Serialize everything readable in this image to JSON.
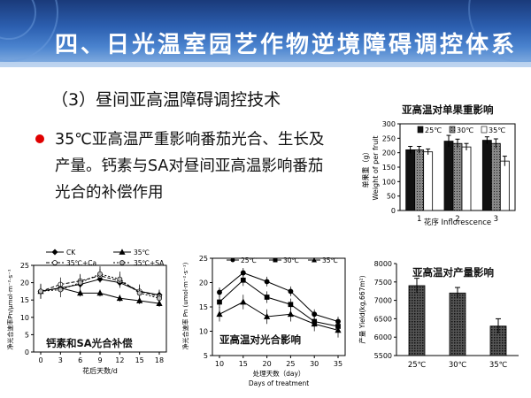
{
  "slide": {
    "banner_title": "四、日光温室园艺作物逆境障碍调控体系",
    "subtitle": "（3）昼间亚高温障碍调控技术",
    "bullet": "35℃亚高温严重影响番茄光合、生长及产量。钙素与SA对昼间亚高温影响番茄光合的补偿作用",
    "colors": {
      "banner": "#2c5fb0",
      "bullet": "#e00000"
    }
  },
  "chart_data": [
    {
      "id": "fruit-weight",
      "type": "bar",
      "title": "亚高温对单果重影响",
      "xlabel": "花序 Inflorescence",
      "ylabel_cn": "单果重（g）",
      "ylabel_en": "Weight of per fruit",
      "ylim": [
        0,
        300
      ],
      "yticks": [
        "0",
        "50",
        "100",
        "150",
        "200",
        "250",
        "300"
      ],
      "categories": [
        "1",
        "2",
        "3"
      ],
      "series": [
        {
          "name": "25℃",
          "values": [
            210,
            240,
            243
          ],
          "errors": [
            12,
            20,
            12
          ]
        },
        {
          "name": "30℃",
          "values": [
            210,
            232,
            232
          ],
          "errors": [
            12,
            15,
            16
          ]
        },
        {
          "name": "35℃",
          "values": [
            203,
            220,
            171
          ],
          "errors": [
            10,
            12,
            17
          ]
        }
      ]
    },
    {
      "id": "photosynthesis-ca-sa",
      "type": "line",
      "overlay_label": "钙素和SA光合补偿",
      "xlabel": "花后天数/d",
      "ylabel": "净光合速率Pn/μmol·m⁻²·s⁻¹",
      "ylim": [
        0,
        25
      ],
      "yticks": [
        "0",
        "5",
        "10",
        "15",
        "20",
        "25"
      ],
      "x": [
        "0",
        "3",
        "6",
        "9",
        "12",
        "15",
        "18"
      ],
      "series": [
        {
          "name": "CK",
          "values": [
            17.5,
            18.5,
            19.5,
            21.0,
            20.0,
            17.5,
            16.5
          ]
        },
        {
          "name": "35℃",
          "values": [
            17.5,
            18.5,
            17.0,
            17.0,
            15.5,
            14.8,
            14.0
          ]
        },
        {
          "name": "35℃+Ca",
          "values": [
            17.5,
            19.5,
            20.5,
            22.0,
            20.5,
            17.5,
            16.0
          ]
        },
        {
          "name": "35℃+SA",
          "values": [
            17.5,
            18.0,
            20.0,
            22.5,
            21.0,
            17.0,
            15.5
          ]
        }
      ]
    },
    {
      "id": "photosynthesis-temp",
      "type": "line",
      "overlay_label": "亚高温对光合影响",
      "xlabel_cn": "处理天数（day）",
      "xlabel_en": "Days of treatment",
      "ylabel": "净光合速率 Pn (umol·m⁻²·s⁻¹)",
      "ylim": [
        5,
        25
      ],
      "yticks": [
        "5",
        "10",
        "15",
        "20",
        "25"
      ],
      "x": [
        "10",
        "15",
        "20",
        "25",
        "30",
        "35"
      ],
      "series": [
        {
          "name": "25℃",
          "values": [
            18.0,
            22.0,
            20.2,
            18.2,
            13.5,
            12.0
          ]
        },
        {
          "name": "30℃",
          "values": [
            16.0,
            20.5,
            17.0,
            15.5,
            12.0,
            11.0
          ]
        },
        {
          "name": "35℃",
          "values": [
            13.5,
            16.0,
            13.0,
            13.5,
            11.5,
            10.2
          ]
        }
      ]
    },
    {
      "id": "yield",
      "type": "bar",
      "title": "亚高温对产量影响",
      "ylabel": "产量 Yield(kg,667m²)",
      "ylim": [
        5500,
        8000
      ],
      "yticks": [
        "5500",
        "6000",
        "6500",
        "7000",
        "7500",
        "8000"
      ],
      "categories": [
        "25℃",
        "30℃",
        "35℃"
      ],
      "values": [
        7400,
        7200,
        6300
      ],
      "errors": [
        200,
        150,
        200
      ]
    }
  ]
}
